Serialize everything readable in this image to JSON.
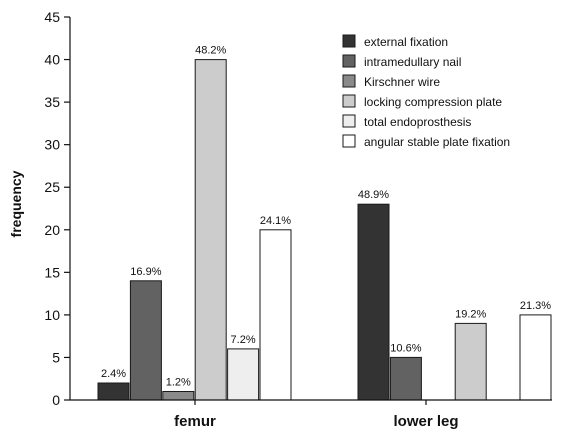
{
  "chart_data": {
    "type": "bar",
    "categories": [
      "femur",
      "lower leg"
    ],
    "ylabel": "frequency",
    "ylim": [
      0,
      45
    ],
    "yticks": [
      0,
      5,
      10,
      15,
      20,
      25,
      30,
      35,
      40,
      45
    ],
    "grid": false,
    "legend_position": "top-right",
    "series": [
      {
        "name": "external fixation",
        "color": "#333333",
        "values": [
          2,
          23
        ],
        "labels": [
          "2.4%",
          "48.9%"
        ]
      },
      {
        "name": "intramedullary nail",
        "color": "#626262",
        "values": [
          14,
          5
        ],
        "labels": [
          "16.9%",
          "10.6%"
        ]
      },
      {
        "name": "Kirschner wire",
        "color": "#8a8a8a",
        "values": [
          1,
          null
        ],
        "labels": [
          "1.2%",
          null
        ]
      },
      {
        "name": "locking compression plate",
        "color": "#cccccc",
        "values": [
          40,
          9
        ],
        "labels": [
          "48.2%",
          "19.2%"
        ]
      },
      {
        "name": "total endoprosthesis",
        "color": "#eeeeee",
        "values": [
          6,
          null
        ],
        "labels": [
          "7.2%",
          null
        ]
      },
      {
        "name": "angular stable plate fixation",
        "color": "#ffffff",
        "values": [
          20,
          10
        ],
        "labels": [
          "24.1%",
          "21.3%"
        ]
      }
    ]
  }
}
